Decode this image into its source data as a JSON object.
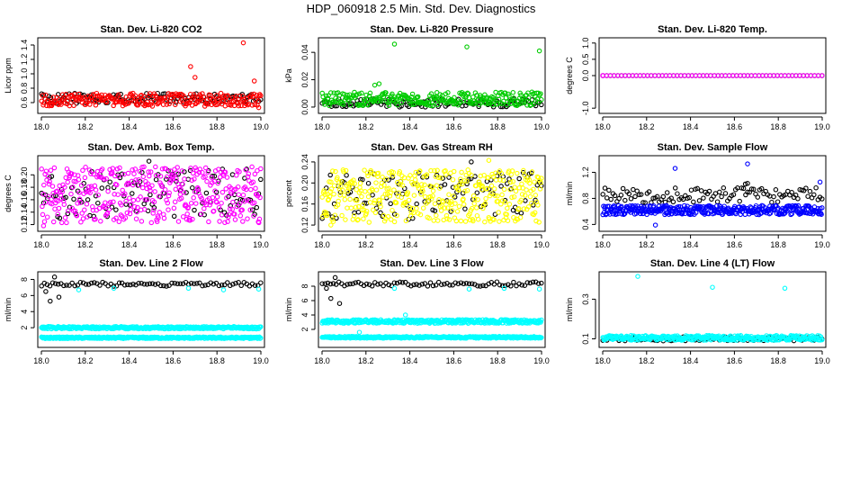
{
  "figure": {
    "title": "HDP_060918  2.5 Min. Std. Dev. Diagnostics"
  },
  "colors": {
    "black": "#000000",
    "red": "#ff0000",
    "green": "#00cc00",
    "magenta": "#ff00ff",
    "yellow": "#ffff00",
    "blue": "#0000ff",
    "cyan": "#00ffff"
  },
  "chart_data": [
    {
      "type": "scatter",
      "title": "Stan. Dev. Li-820 CO2",
      "ylabel": "Licor ppm",
      "xlim": [
        18.0,
        19.0
      ],
      "ylim": [
        0.5,
        1.45
      ],
      "xticks": [
        "18.0",
        "18.2",
        "18.4",
        "18.6",
        "18.8",
        "19.0"
      ],
      "yticks": [
        "0.6",
        "0.8",
        "1.0",
        "1.2",
        "1.4"
      ],
      "series": [
        {
          "color": "black",
          "band": {
            "base": 0.66,
            "spread": 0.07,
            "seed": 11,
            "count": 120
          },
          "extra": []
        },
        {
          "color": "red",
          "band": {
            "base": 0.64,
            "spread": 0.09,
            "seed": 12,
            "count": 260
          },
          "extra": [
            [
              18.68,
              1.1
            ],
            [
              18.7,
              0.95
            ],
            [
              18.92,
              1.43
            ],
            [
              18.97,
              0.9
            ],
            [
              18.99,
              0.53
            ]
          ]
        }
      ]
    },
    {
      "type": "scatter",
      "title": "Stan. Dev. Li-820 Pressure",
      "ylabel": "kPa",
      "xlim": [
        18.0,
        19.0
      ],
      "ylim": [
        -0.002,
        0.048
      ],
      "xticks": [
        "18.0",
        "18.2",
        "18.4",
        "18.6",
        "18.8",
        "19.0"
      ],
      "yticks": [
        "0.00",
        "0.02",
        "0.04"
      ],
      "series": [
        {
          "color": "black",
          "band": {
            "base": 0.003,
            "spread": 0.003,
            "seed": 21,
            "count": 120
          },
          "extra": []
        },
        {
          "color": "green",
          "band": {
            "base": 0.006,
            "spread": 0.005,
            "seed": 22,
            "count": 280
          },
          "extra": [
            [
              18.24,
              0.016
            ],
            [
              18.26,
              0.017
            ],
            [
              18.33,
              0.046
            ],
            [
              18.66,
              0.044
            ],
            [
              18.99,
              0.041
            ]
          ]
        }
      ]
    },
    {
      "type": "scatter",
      "title": "Stan. Dev. Li-820 Temp.",
      "ylabel": "degrees C",
      "xlim": [
        18.0,
        19.0
      ],
      "ylim": [
        -1.05,
        1.05
      ],
      "xticks": [
        "18.0",
        "18.2",
        "18.4",
        "18.6",
        "18.8",
        "19.0"
      ],
      "yticks": [
        "-1.0",
        "0.0",
        "0.5",
        "1.0"
      ],
      "series": [
        {
          "color": "black",
          "band": {
            "base": 0.0,
            "spread": 0.0,
            "seed": 31,
            "count": 60
          },
          "extra": []
        },
        {
          "color": "magenta",
          "band": {
            "base": 0.0,
            "spread": 0.0,
            "seed": 32,
            "count": 60
          },
          "extra": [
            [
              18.0,
              0.0
            ]
          ]
        }
      ]
    },
    {
      "type": "scatter",
      "title": "Stan. Dev. Amb. Box Temp.",
      "ylabel": "degrees C",
      "xlim": [
        18.0,
        19.0
      ],
      "ylim": [
        0.115,
        0.225
      ],
      "xticks": [
        "18.0",
        "18.2",
        "18.4",
        "18.6",
        "18.8",
        "19.0"
      ],
      "yticks": [
        "0.12",
        "0.14",
        "0.16",
        "0.18",
        "0.20"
      ],
      "series": [
        {
          "color": "black",
          "band": {
            "base": 0.17,
            "spread": 0.04,
            "seed": 41,
            "count": 110
          },
          "extra": [
            [
              18.49,
              0.222
            ],
            [
              18.3,
              0.133
            ]
          ]
        },
        {
          "color": "magenta",
          "band": {
            "base": 0.168,
            "spread": 0.045,
            "seed": 42,
            "count": 380
          },
          "extra": [
            [
              18.01,
              0.118
            ]
          ]
        }
      ]
    },
    {
      "type": "scatter",
      "title": "Stan. Dev. Gas Stream RH",
      "ylabel": "percent",
      "xlim": [
        18.0,
        19.0
      ],
      "ylim": [
        0.115,
        0.245
      ],
      "xticks": [
        "18.0",
        "18.2",
        "18.4",
        "18.6",
        "18.8",
        "19.0"
      ],
      "yticks": [
        "0.12",
        "0.16",
        "0.20",
        "0.24"
      ],
      "series": [
        {
          "color": "black",
          "band": {
            "base": 0.175,
            "spread": 0.045,
            "seed": 51,
            "count": 110
          },
          "extra": [
            [
              18.68,
              0.24
            ]
          ]
        },
        {
          "color": "yellow",
          "band": {
            "base": 0.175,
            "spread": 0.05,
            "seed": 52,
            "count": 380
          },
          "extra": [
            [
              18.04,
              0.12
            ],
            [
              18.76,
              0.243
            ]
          ]
        }
      ]
    },
    {
      "type": "scatter",
      "title": "Stan. Dev. Sample Flow",
      "ylabel": "ml/min",
      "xlim": [
        18.0,
        19.0
      ],
      "ylim": [
        0.35,
        1.4
      ],
      "xticks": [
        "18.0",
        "18.2",
        "18.4",
        "18.6",
        "18.8",
        "19.0"
      ],
      "yticks": [
        "0.4",
        "0.8",
        "1.2"
      ],
      "series": [
        {
          "color": "black",
          "band": {
            "base": 0.85,
            "spread": 0.12,
            "seed": 61,
            "count": 110
          },
          "extra": [
            [
              18.65,
              1.02
            ],
            [
              18.66,
              1.03
            ]
          ]
        },
        {
          "color": "blue",
          "band": {
            "base": 0.62,
            "spread": 0.07,
            "seed": 62,
            "count": 380
          },
          "extra": [
            [
              18.33,
              1.26
            ],
            [
              18.66,
              1.33
            ],
            [
              18.99,
              1.05
            ],
            [
              18.24,
              0.39
            ]
          ]
        }
      ]
    },
    {
      "type": "scatter",
      "title": "Stan. Dev. Line 2 Flow",
      "ylabel": "ml/min",
      "xlim": [
        18.0,
        19.0
      ],
      "ylim": [
        0.0,
        8.5
      ],
      "xticks": [
        "18.0",
        "18.2",
        "18.4",
        "18.6",
        "18.8",
        "19.0"
      ],
      "yticks": [
        "2",
        "4",
        "6",
        "8"
      ],
      "series": [
        {
          "color": "black",
          "band": {
            "base": 7.4,
            "spread": 0.25,
            "seed": 71,
            "count": 80
          },
          "extra": [
            [
              18.02,
              6.5
            ],
            [
              18.04,
              5.3
            ],
            [
              18.06,
              8.3
            ],
            [
              18.08,
              5.8
            ]
          ]
        },
        {
          "color": "cyan",
          "band": {
            "base": 2.0,
            "spread": 0.15,
            "seed": 72,
            "count": 360
          },
          "extra": [
            [
              18.17,
              6.7
            ],
            [
              18.33,
              6.9
            ],
            [
              18.67,
              6.9
            ],
            [
              18.83,
              6.7
            ],
            [
              18.99,
              6.8
            ]
          ]
        },
        {
          "color": "cyan",
          "band": {
            "base": 0.75,
            "spread": 0.1,
            "seed": 73,
            "count": 360
          },
          "extra": []
        }
      ]
    },
    {
      "type": "scatter",
      "title": "Stan. Dev. Line 3 Flow",
      "ylabel": "ml/min",
      "xlim": [
        18.0,
        19.0
      ],
      "ylim": [
        0.0,
        9.5
      ],
      "xticks": [
        "18.0",
        "18.2",
        "18.4",
        "18.6",
        "18.8",
        "19.0"
      ],
      "yticks": [
        "2",
        "4",
        "6",
        "8"
      ],
      "series": [
        {
          "color": "black",
          "band": {
            "base": 8.3,
            "spread": 0.3,
            "seed": 81,
            "count": 80
          },
          "extra": [
            [
              18.02,
              7.7
            ],
            [
              18.04,
              6.3
            ],
            [
              18.06,
              9.2
            ],
            [
              18.08,
              5.6
            ]
          ]
        },
        {
          "color": "cyan",
          "band": {
            "base": 3.1,
            "spread": 0.25,
            "seed": 82,
            "count": 360
          },
          "extra": [
            [
              18.17,
              1.6
            ],
            [
              18.33,
              7.7
            ],
            [
              18.38,
              4.0
            ],
            [
              18.67,
              7.6
            ],
            [
              18.83,
              7.7
            ],
            [
              18.99,
              7.6
            ]
          ]
        },
        {
          "color": "cyan",
          "band": {
            "base": 0.9,
            "spread": 0.12,
            "seed": 83,
            "count": 360
          },
          "extra": []
        }
      ]
    },
    {
      "type": "scatter",
      "title": "Stan. Dev. Line 4 (LT) Flow",
      "ylabel": "ml/min",
      "xlim": [
        18.0,
        19.0
      ],
      "ylim": [
        0.075,
        0.42
      ],
      "xticks": [
        "18.0",
        "18.2",
        "18.4",
        "18.6",
        "18.8",
        "19.0"
      ],
      "yticks": [
        "0.1",
        "0.3"
      ],
      "series": [
        {
          "color": "black",
          "band": {
            "base": 0.1,
            "spread": 0.01,
            "seed": 91,
            "count": 110
          },
          "extra": []
        },
        {
          "color": "cyan",
          "band": {
            "base": 0.105,
            "spread": 0.012,
            "seed": 92,
            "count": 360
          },
          "extra": [
            [
              18.16,
              0.415
            ],
            [
              18.5,
              0.36
            ],
            [
              18.83,
              0.355
            ]
          ]
        }
      ]
    }
  ]
}
